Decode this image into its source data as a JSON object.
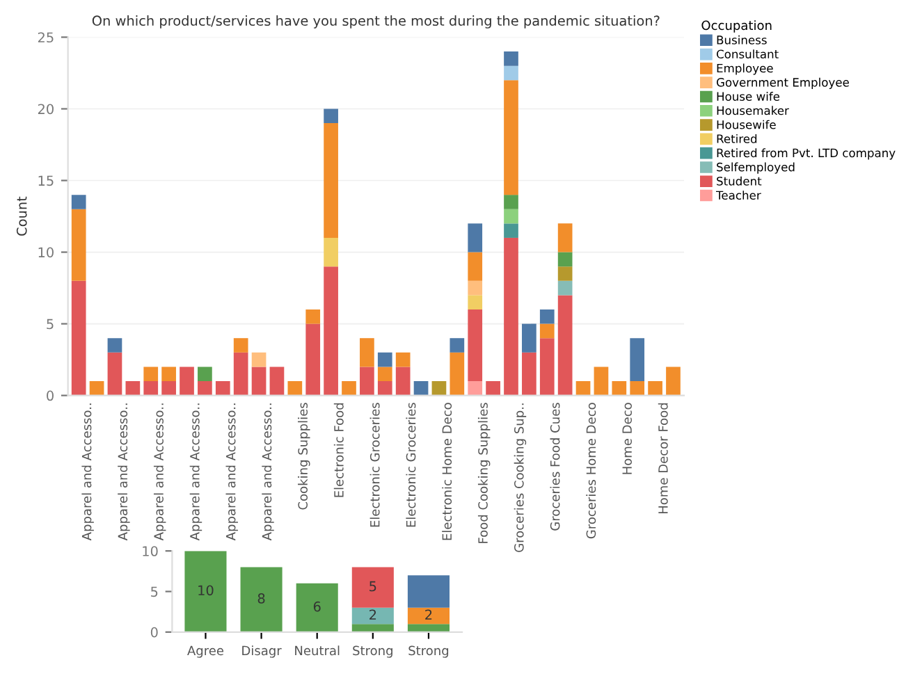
{
  "chart_data": [
    {
      "type": "bar",
      "stacked": true,
      "title": "On which product/services have you spent the most during the pandemic situation?",
      "ylabel": "Count",
      "legend_title": "Occupation",
      "legend": "top right",
      "grid": "y",
      "ylim": [
        0,
        25
      ],
      "yticks": [
        0,
        5,
        10,
        15,
        20,
        25
      ],
      "categories": [
        "Apparel and Accesso..",
        null,
        "Apparel and Accesso..",
        null,
        "Apparel and Accesso..",
        null,
        "Apparel and Accesso..",
        null,
        "Apparel and Accesso..",
        null,
        "Apparel and Accesso..",
        null,
        "Cooking Supplies",
        null,
        "Electronic Food",
        null,
        "Electronic Groceries",
        null,
        "Electronic Groceries",
        null,
        "Electronic Home Deco",
        null,
        "Food Cooking Supplies",
        null,
        "Groceries Cooking Sup..",
        null,
        "Groceries Food Cues",
        null,
        "Groceries Home Deco",
        null,
        "Home Deco",
        null,
        "Home Decor Food",
        null
      ],
      "series": [
        {
          "name": "Teacher",
          "color": "#ff9d9a",
          "values": [
            null,
            null,
            null,
            null,
            null,
            null,
            null,
            null,
            null,
            null,
            null,
            null,
            null,
            null,
            null,
            null,
            null,
            null,
            null,
            null,
            null,
            null,
            1,
            null,
            null,
            null,
            null,
            null,
            null,
            null,
            null,
            null,
            null,
            null
          ]
        },
        {
          "name": "Student",
          "color": "#e15759",
          "values": [
            8,
            null,
            3,
            1,
            1,
            1,
            2,
            1,
            1,
            3,
            2,
            2,
            null,
            5,
            9,
            null,
            2,
            1,
            2,
            null,
            null,
            null,
            5,
            1,
            11,
            3,
            4,
            7,
            null,
            null,
            null,
            null,
            null,
            null
          ]
        },
        {
          "name": "Selfemployed",
          "color": "#86bcb6",
          "values": [
            null,
            null,
            null,
            null,
            null,
            null,
            null,
            null,
            null,
            null,
            null,
            null,
            null,
            null,
            null,
            null,
            null,
            null,
            null,
            null,
            null,
            null,
            null,
            null,
            null,
            null,
            null,
            1,
            null,
            null,
            null,
            null,
            null,
            null
          ]
        },
        {
          "name": "Retired from Pvt. LTD company",
          "color": "#499894",
          "values": [
            null,
            null,
            null,
            null,
            null,
            null,
            null,
            null,
            null,
            null,
            null,
            null,
            null,
            null,
            null,
            null,
            null,
            null,
            null,
            null,
            null,
            null,
            null,
            null,
            1,
            null,
            null,
            null,
            null,
            null,
            null,
            null,
            null,
            null
          ]
        },
        {
          "name": "Retired",
          "color": "#f1ce63",
          "values": [
            null,
            null,
            null,
            null,
            null,
            null,
            null,
            null,
            null,
            null,
            null,
            null,
            null,
            null,
            2,
            null,
            null,
            null,
            null,
            null,
            null,
            null,
            1,
            null,
            null,
            null,
            null,
            null,
            null,
            null,
            null,
            null,
            null,
            null
          ]
        },
        {
          "name": "Housewife",
          "color": "#b6992d",
          "values": [
            null,
            null,
            null,
            null,
            null,
            null,
            null,
            null,
            null,
            null,
            null,
            null,
            null,
            null,
            null,
            null,
            null,
            null,
            null,
            null,
            1,
            null,
            null,
            null,
            null,
            null,
            null,
            1,
            null,
            null,
            null,
            null,
            null,
            null
          ]
        },
        {
          "name": "Housemaker",
          "color": "#8cd17d",
          "values": [
            null,
            null,
            null,
            null,
            null,
            null,
            null,
            null,
            null,
            null,
            null,
            null,
            null,
            null,
            null,
            null,
            null,
            null,
            null,
            null,
            null,
            null,
            null,
            null,
            1,
            null,
            null,
            null,
            null,
            null,
            null,
            null,
            null,
            null
          ]
        },
        {
          "name": "House wife",
          "color": "#59a14f",
          "values": [
            null,
            null,
            null,
            null,
            null,
            null,
            null,
            1,
            null,
            null,
            null,
            null,
            null,
            null,
            null,
            null,
            null,
            null,
            null,
            null,
            null,
            null,
            null,
            null,
            1,
            null,
            null,
            1,
            null,
            null,
            null,
            null,
            null,
            null
          ]
        },
        {
          "name": "Government Employee",
          "color": "#ffbe7d",
          "values": [
            null,
            null,
            null,
            null,
            null,
            null,
            null,
            null,
            null,
            null,
            1,
            null,
            null,
            null,
            null,
            null,
            null,
            null,
            null,
            null,
            null,
            null,
            1,
            null,
            null,
            null,
            null,
            null,
            null,
            null,
            null,
            null,
            null,
            null
          ]
        },
        {
          "name": "Employee",
          "color": "#f28e2b",
          "values": [
            5,
            1,
            null,
            null,
            1,
            1,
            null,
            null,
            null,
            1,
            null,
            null,
            1,
            1,
            8,
            1,
            2,
            1,
            1,
            null,
            null,
            3,
            2,
            null,
            8,
            null,
            1,
            2,
            1,
            2,
            1,
            1,
            1,
            2
          ]
        },
        {
          "name": "Consultant",
          "color": "#a0cbe8",
          "values": [
            null,
            null,
            null,
            null,
            null,
            null,
            null,
            null,
            null,
            null,
            null,
            null,
            null,
            null,
            null,
            null,
            null,
            null,
            null,
            null,
            null,
            null,
            null,
            null,
            1,
            null,
            null,
            null,
            null,
            null,
            null,
            null,
            null,
            null
          ]
        },
        {
          "name": "Business",
          "color": "#4e79a7",
          "values": [
            1,
            null,
            1,
            null,
            null,
            null,
            null,
            null,
            null,
            null,
            null,
            null,
            null,
            null,
            1,
            null,
            null,
            1,
            null,
            1,
            null,
            1,
            2,
            null,
            1,
            2,
            1,
            null,
            null,
            null,
            null,
            3,
            null,
            null
          ]
        }
      ]
    },
    {
      "type": "bar",
      "stacked": true,
      "ylim": [
        0,
        10
      ],
      "yticks": [
        0,
        5,
        10
      ],
      "grid": false,
      "categories": [
        "Agree",
        "Disagr",
        "Neutral",
        "Strong",
        "Strong"
      ],
      "series": [
        {
          "color": "#59a14f",
          "values": [
            10,
            8,
            6,
            1,
            1
          ],
          "value_labels": [
            "10",
            "8",
            "6",
            null,
            null
          ]
        },
        {
          "color": "#76b7b2",
          "values": [
            null,
            null,
            null,
            2,
            null
          ],
          "value_labels": [
            null,
            null,
            null,
            "2",
            null
          ]
        },
        {
          "color": "#f28e2b",
          "values": [
            null,
            null,
            null,
            null,
            2
          ],
          "value_labels": [
            null,
            null,
            null,
            null,
            "2"
          ]
        },
        {
          "color": "#e15759",
          "values": [
            null,
            null,
            null,
            5,
            null
          ],
          "value_labels": [
            null,
            null,
            null,
            "5",
            null
          ]
        },
        {
          "color": "#4e79a7",
          "values": [
            null,
            null,
            null,
            null,
            4
          ],
          "value_labels": [
            null,
            null,
            null,
            null,
            null
          ]
        }
      ]
    }
  ]
}
